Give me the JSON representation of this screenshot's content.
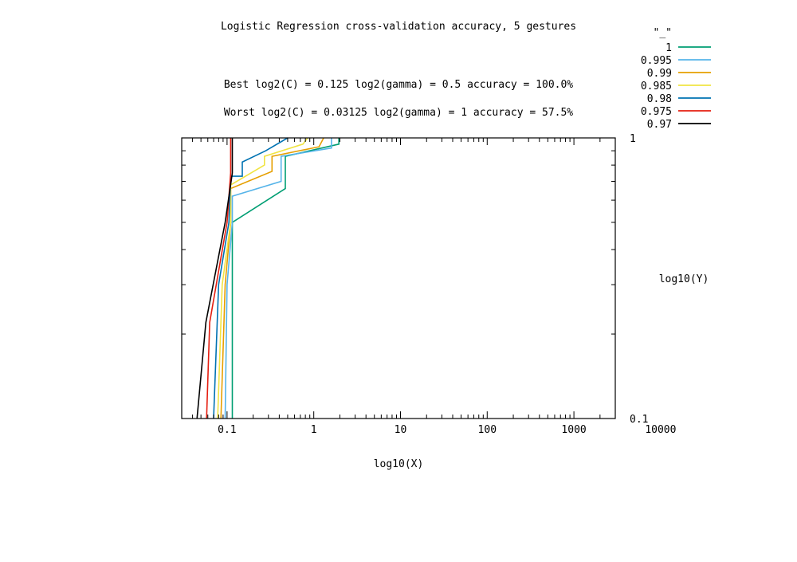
{
  "chart_data": {
    "type": "line",
    "title": "Logistic Regression cross-validation accuracy, 5 gestures",
    "subtitle_best": "Best log2(C) = 0.125  log2(gamma) = 0.5  accuracy = 100.0%",
    "subtitle_worst": "Worst log2(C) = 0.03125  log2(gamma) = 1   accuracy = 57.5%",
    "xlabel": "log10(X)",
    "ylabel": "log10(Y)",
    "xscale": "log",
    "yscale": "log",
    "xlim": [
      0.03,
      3000
    ],
    "ylim": [
      0.1,
      1
    ],
    "x_ticks": [
      {
        "value": 0.1,
        "label": "0.1"
      },
      {
        "value": 1,
        "label": "1"
      },
      {
        "value": 10,
        "label": "10"
      },
      {
        "value": 100,
        "label": "100"
      },
      {
        "value": 1000,
        "label": "1000"
      },
      {
        "value": 10000,
        "label": "10000"
      }
    ],
    "y_ticks": [
      {
        "value": 0.1,
        "label": "0.1"
      },
      {
        "value": 1,
        "label": "1"
      }
    ],
    "legend_title": "\"_\"",
    "legend_position": "top-right outside",
    "series": [
      {
        "name": "1",
        "color": "#009e73",
        "points": [
          [
            0.115,
            0.1
          ],
          [
            0.115,
            0.5
          ],
          [
            0.47,
            0.66
          ],
          [
            0.47,
            0.86
          ],
          [
            1.95,
            0.95
          ],
          [
            1.95,
            1.0
          ]
        ]
      },
      {
        "name": "0.995",
        "color": "#56b4e9",
        "points": [
          [
            0.095,
            0.1
          ],
          [
            0.1,
            0.3
          ],
          [
            0.115,
            0.5
          ],
          [
            0.115,
            0.62
          ],
          [
            0.42,
            0.7
          ],
          [
            0.42,
            0.86
          ],
          [
            1.6,
            0.92
          ],
          [
            1.6,
            1.0
          ]
        ]
      },
      {
        "name": "0.99",
        "color": "#e69f00",
        "points": [
          [
            0.085,
            0.1
          ],
          [
            0.095,
            0.3
          ],
          [
            0.11,
            0.5
          ],
          [
            0.11,
            0.66
          ],
          [
            0.33,
            0.76
          ],
          [
            0.33,
            0.86
          ],
          [
            1.15,
            0.93
          ],
          [
            1.3,
            1.0
          ]
        ]
      },
      {
        "name": "0.985",
        "color": "#f0e442",
        "points": [
          [
            0.078,
            0.1
          ],
          [
            0.088,
            0.3
          ],
          [
            0.11,
            0.5
          ],
          [
            0.11,
            0.68
          ],
          [
            0.27,
            0.8
          ],
          [
            0.27,
            0.86
          ],
          [
            0.75,
            0.95
          ],
          [
            0.85,
            1.0
          ]
        ]
      },
      {
        "name": "0.98",
        "color": "#0072b2",
        "points": [
          [
            0.07,
            0.1
          ],
          [
            0.08,
            0.3
          ],
          [
            0.105,
            0.5
          ],
          [
            0.11,
            0.73
          ],
          [
            0.15,
            0.73
          ],
          [
            0.15,
            0.82
          ],
          [
            0.28,
            0.9
          ],
          [
            0.5,
            1.0
          ]
        ]
      },
      {
        "name": "0.975",
        "color": "#e51e10",
        "points": [
          [
            0.058,
            0.1
          ],
          [
            0.063,
            0.22
          ],
          [
            0.1,
            0.5
          ],
          [
            0.11,
            0.75
          ],
          [
            0.11,
            1.0
          ]
        ]
      },
      {
        "name": "0.97",
        "color": "#000000",
        "points": [
          [
            0.045,
            0.1
          ],
          [
            0.057,
            0.22
          ],
          [
            0.095,
            0.5
          ],
          [
            0.115,
            0.75
          ],
          [
            0.115,
            1.0
          ]
        ]
      }
    ]
  }
}
